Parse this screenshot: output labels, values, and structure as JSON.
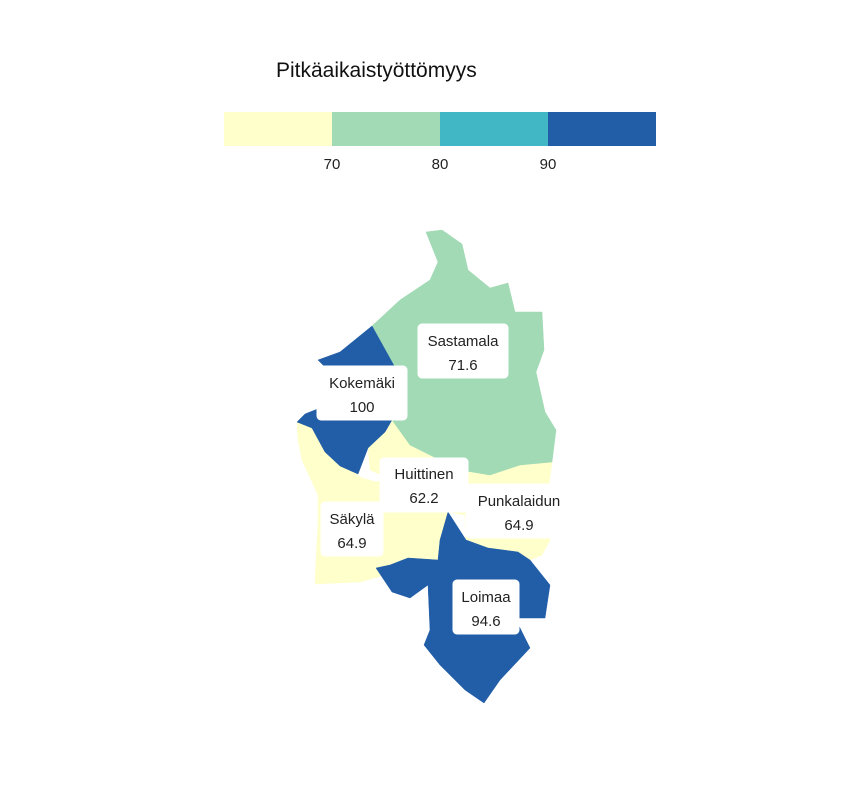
{
  "legend": {
    "title": "Pitkäaikaistyöttömyys",
    "breaks": [
      {
        "label": "",
        "color": "#ffffcc"
      },
      {
        "label": "70",
        "color": "#a1dab4"
      },
      {
        "label": "80",
        "color": "#41b6c4"
      },
      {
        "label": "90",
        "color": "#225ea8"
      }
    ]
  },
  "regions": [
    {
      "name": "Sastamala",
      "value": "71.6",
      "color": "#a1dab4"
    },
    {
      "name": "Kokemäki",
      "value": "100",
      "color": "#225ea8"
    },
    {
      "name": "Huittinen",
      "value": "62.2",
      "color": "#ffffcc"
    },
    {
      "name": "Punkalaidun",
      "value": "64.9",
      "color": "#ffffcc"
    },
    {
      "name": "Säkylä",
      "value": "64.9",
      "color": "#ffffcc"
    },
    {
      "name": "Loimaa",
      "value": "94.6",
      "color": "#225ea8"
    }
  ]
}
